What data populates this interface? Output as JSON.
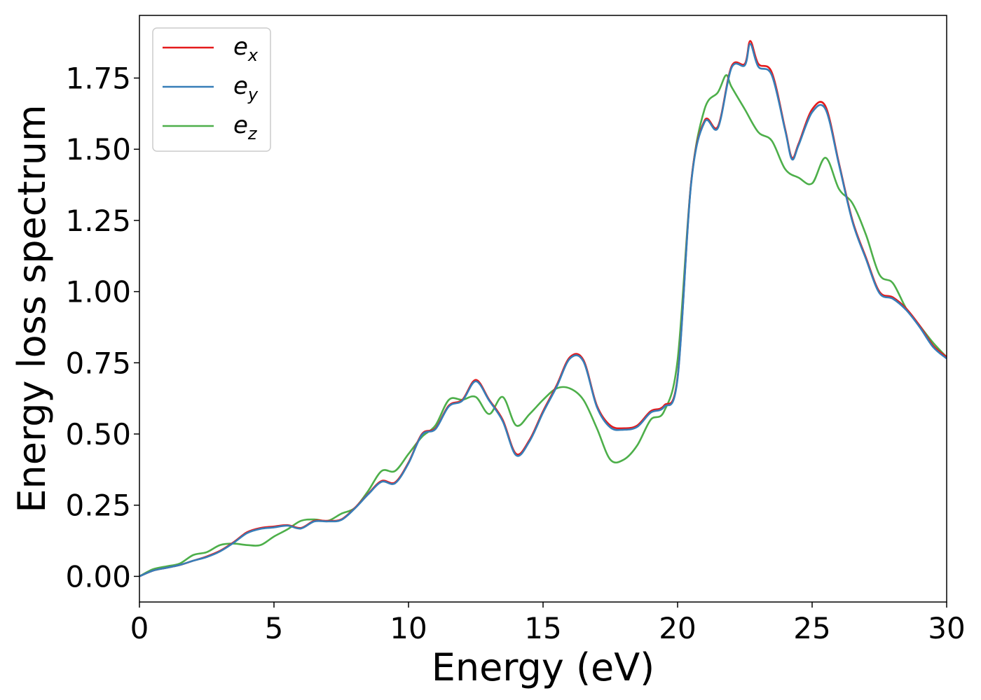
{
  "chart_data": {
    "type": "line",
    "title": "",
    "xlabel": "Energy (eV)",
    "ylabel": "Energy loss spectrum",
    "xlim": [
      0,
      30
    ],
    "ylim": [
      -0.09,
      1.97
    ],
    "xticks": [
      0,
      5,
      10,
      15,
      20,
      25,
      30
    ],
    "xtick_labels": [
      "0",
      "5",
      "10",
      "15",
      "20",
      "25",
      "30"
    ],
    "yticks": [
      0.0,
      0.25,
      0.5,
      0.75,
      1.0,
      1.25,
      1.5,
      1.75
    ],
    "ytick_labels": [
      "0.00",
      "0.25",
      "0.50",
      "0.75",
      "1.00",
      "1.25",
      "1.50",
      "1.75"
    ],
    "grid": false,
    "legend_position": "top-left",
    "series": [
      {
        "name": "e_x",
        "label_base": "e",
        "label_sub": "x",
        "color": "#e41a1c",
        "x": [
          0,
          0.5,
          1,
          1.5,
          2,
          2.5,
          3,
          3.5,
          4,
          4.5,
          5,
          5.5,
          6,
          6.5,
          7,
          7.5,
          8,
          8.5,
          9,
          9.5,
          10,
          10.5,
          11,
          11.5,
          12,
          12.5,
          13,
          13.5,
          14,
          14.5,
          15,
          15.5,
          16,
          16.5,
          17,
          17.5,
          18,
          18.5,
          19,
          19.5,
          20,
          20.5,
          21,
          21.5,
          22,
          22.5,
          22.7,
          23,
          23.5,
          24,
          24.25,
          24.5,
          25,
          25.5,
          26,
          26.5,
          27,
          27.5,
          28,
          28.5,
          29,
          29.5,
          30
        ],
        "y": [
          0,
          0.02,
          0.03,
          0.04,
          0.055,
          0.07,
          0.09,
          0.12,
          0.155,
          0.17,
          0.175,
          0.18,
          0.17,
          0.195,
          0.195,
          0.2,
          0.24,
          0.29,
          0.335,
          0.33,
          0.4,
          0.5,
          0.52,
          0.6,
          0.62,
          0.69,
          0.62,
          0.55,
          0.43,
          0.48,
          0.58,
          0.67,
          0.77,
          0.76,
          0.6,
          0.53,
          0.52,
          0.53,
          0.58,
          0.6,
          0.7,
          1.38,
          1.6,
          1.58,
          1.79,
          1.8,
          1.88,
          1.8,
          1.77,
          1.57,
          1.47,
          1.52,
          1.64,
          1.65,
          1.45,
          1.25,
          1.12,
          1.0,
          0.98,
          0.94,
          0.88,
          0.81,
          0.77
        ]
      },
      {
        "name": "e_y",
        "label_base": "e",
        "label_sub": "y",
        "color": "#377eb8",
        "x": [
          0,
          0.5,
          1,
          1.5,
          2,
          2.5,
          3,
          3.5,
          4,
          4.5,
          5,
          5.5,
          6,
          6.5,
          7,
          7.5,
          8,
          8.5,
          9,
          9.5,
          10,
          10.5,
          11,
          11.5,
          12,
          12.5,
          13,
          13.5,
          14,
          14.5,
          15,
          15.5,
          16,
          16.5,
          17,
          17.5,
          18,
          18.5,
          19,
          19.5,
          20,
          20.5,
          21,
          21.5,
          22,
          22.5,
          22.7,
          23,
          23.5,
          24,
          24.25,
          24.5,
          25,
          25.5,
          26,
          26.5,
          27,
          27.5,
          28,
          28.5,
          29,
          29.5,
          30
        ],
        "y": [
          0,
          0.02,
          0.03,
          0.04,
          0.055,
          0.068,
          0.088,
          0.118,
          0.152,
          0.167,
          0.172,
          0.178,
          0.168,
          0.193,
          0.193,
          0.198,
          0.238,
          0.288,
          0.332,
          0.327,
          0.397,
          0.497,
          0.517,
          0.597,
          0.617,
          0.685,
          0.617,
          0.545,
          0.425,
          0.475,
          0.575,
          0.665,
          0.765,
          0.755,
          0.595,
          0.523,
          0.515,
          0.525,
          0.575,
          0.595,
          0.695,
          1.375,
          1.595,
          1.575,
          1.785,
          1.795,
          1.87,
          1.79,
          1.76,
          1.565,
          1.465,
          1.515,
          1.63,
          1.64,
          1.445,
          1.245,
          1.115,
          0.995,
          0.975,
          0.935,
          0.875,
          0.805,
          0.765
        ]
      },
      {
        "name": "e_z",
        "label_base": "e",
        "label_sub": "z",
        "color": "#4daf4a",
        "x": [
          0,
          0.5,
          1,
          1.5,
          2,
          2.5,
          3,
          3.5,
          4,
          4.5,
          5,
          5.5,
          6,
          6.5,
          7,
          7.5,
          8,
          8.5,
          9,
          9.5,
          10,
          10.5,
          11,
          11.5,
          12,
          12.5,
          13,
          13.5,
          14,
          14.5,
          15,
          15.5,
          16,
          16.5,
          17,
          17.5,
          18,
          18.5,
          19,
          19.5,
          20,
          20.5,
          21,
          21.5,
          21.8,
          22,
          22.5,
          23,
          23.5,
          24,
          24.5,
          25,
          25.5,
          26,
          26.5,
          27,
          27.5,
          28,
          28.5,
          29,
          29.5,
          30
        ],
        "y": [
          0,
          0.025,
          0.035,
          0.045,
          0.075,
          0.085,
          0.11,
          0.115,
          0.11,
          0.11,
          0.14,
          0.165,
          0.195,
          0.2,
          0.195,
          0.22,
          0.24,
          0.3,
          0.37,
          0.37,
          0.43,
          0.49,
          0.53,
          0.62,
          0.62,
          0.63,
          0.57,
          0.63,
          0.53,
          0.57,
          0.62,
          0.66,
          0.66,
          0.62,
          0.52,
          0.41,
          0.41,
          0.46,
          0.55,
          0.58,
          0.76,
          1.38,
          1.64,
          1.7,
          1.76,
          1.72,
          1.64,
          1.56,
          1.53,
          1.43,
          1.4,
          1.38,
          1.47,
          1.36,
          1.31,
          1.2,
          1.06,
          1.03,
          0.94,
          0.88,
          0.82,
          0.77
        ]
      }
    ]
  }
}
